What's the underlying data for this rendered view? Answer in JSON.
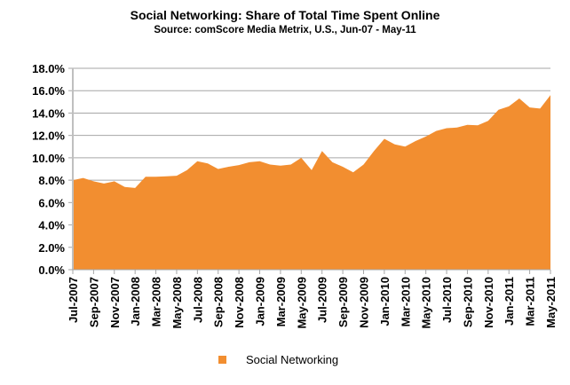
{
  "chart_data": {
    "type": "area",
    "title": "Social Networking: Share of Total Time Spent Online",
    "subtitle": "Source: comScore Media Metrix, U.S., Jun-07 - May-11",
    "xlabel": "",
    "ylabel": "",
    "ylim": [
      0,
      18
    ],
    "yticks": [
      "0.0%",
      "2.0%",
      "4.0%",
      "6.0%",
      "8.0%",
      "10.0%",
      "12.0%",
      "14.0%",
      "16.0%",
      "18.0%"
    ],
    "grid": true,
    "legend_position": "bottom",
    "x_tick_labels": [
      "Jul-2007",
      "Sep-2007",
      "Nov-2007",
      "Jan-2008",
      "Mar-2008",
      "May-2008",
      "Jul-2008",
      "Sep-2008",
      "Nov-2008",
      "Jan-2009",
      "Mar-2009",
      "May-2009",
      "Jul-2009",
      "Sep-2009",
      "Nov-2009",
      "Jan-2010",
      "Mar-2010",
      "May-2010",
      "Jul-2010",
      "Sep-2010",
      "Nov-2010",
      "Jan-2011",
      "Mar-2011",
      "May-2011"
    ],
    "series": [
      {
        "name": "Social Networking",
        "color": "#F28E30",
        "values": [
          8.0,
          8.2,
          7.9,
          7.7,
          7.9,
          7.4,
          7.3,
          8.3,
          8.3,
          8.35,
          8.4,
          8.9,
          9.7,
          9.5,
          9.0,
          9.2,
          9.35,
          9.6,
          9.7,
          9.4,
          9.3,
          9.4,
          10.0,
          8.9,
          10.6,
          9.6,
          9.2,
          8.7,
          9.4,
          10.6,
          11.7,
          11.2,
          11.0,
          11.5,
          11.9,
          12.4,
          12.65,
          12.7,
          12.95,
          12.9,
          13.3,
          14.3,
          14.6,
          15.3,
          14.5,
          14.4,
          15.6
        ]
      }
    ]
  }
}
